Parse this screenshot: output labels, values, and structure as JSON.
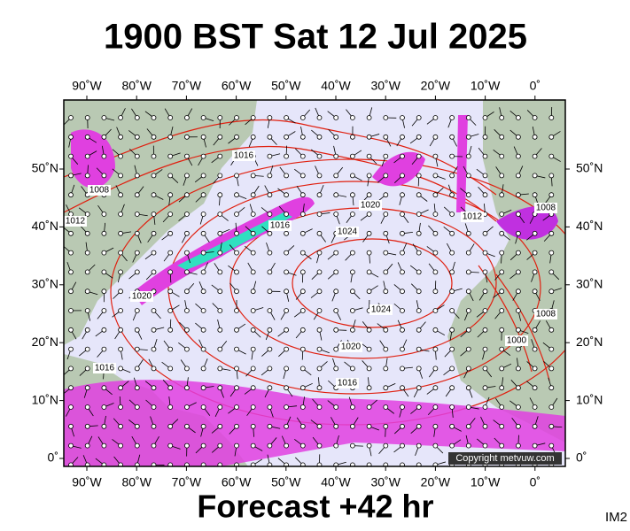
{
  "header": {
    "title": "1900 BST Sat 12 Jul 2025"
  },
  "map": {
    "lon_labels": [
      "90˚W",
      "80˚W",
      "70˚W",
      "60˚W",
      "50˚W",
      "40˚W",
      "30˚W",
      "20˚W",
      "10˚W",
      "0˚"
    ],
    "lat_labels": [
      "50˚N",
      "40˚N",
      "30˚N",
      "20˚N",
      "10˚N",
      "0˚"
    ],
    "isobar_labels": [
      "1016",
      "1008",
      "1012",
      "1020",
      "1024",
      "1016",
      "1012",
      "1020",
      "1024",
      "1020",
      "1016",
      "1016",
      "1008",
      "1000",
      "1008"
    ],
    "copyright": "Copyright metvuw.com"
  },
  "footer": {
    "forecast": "Forecast +42 hr",
    "code": "IM2"
  }
}
